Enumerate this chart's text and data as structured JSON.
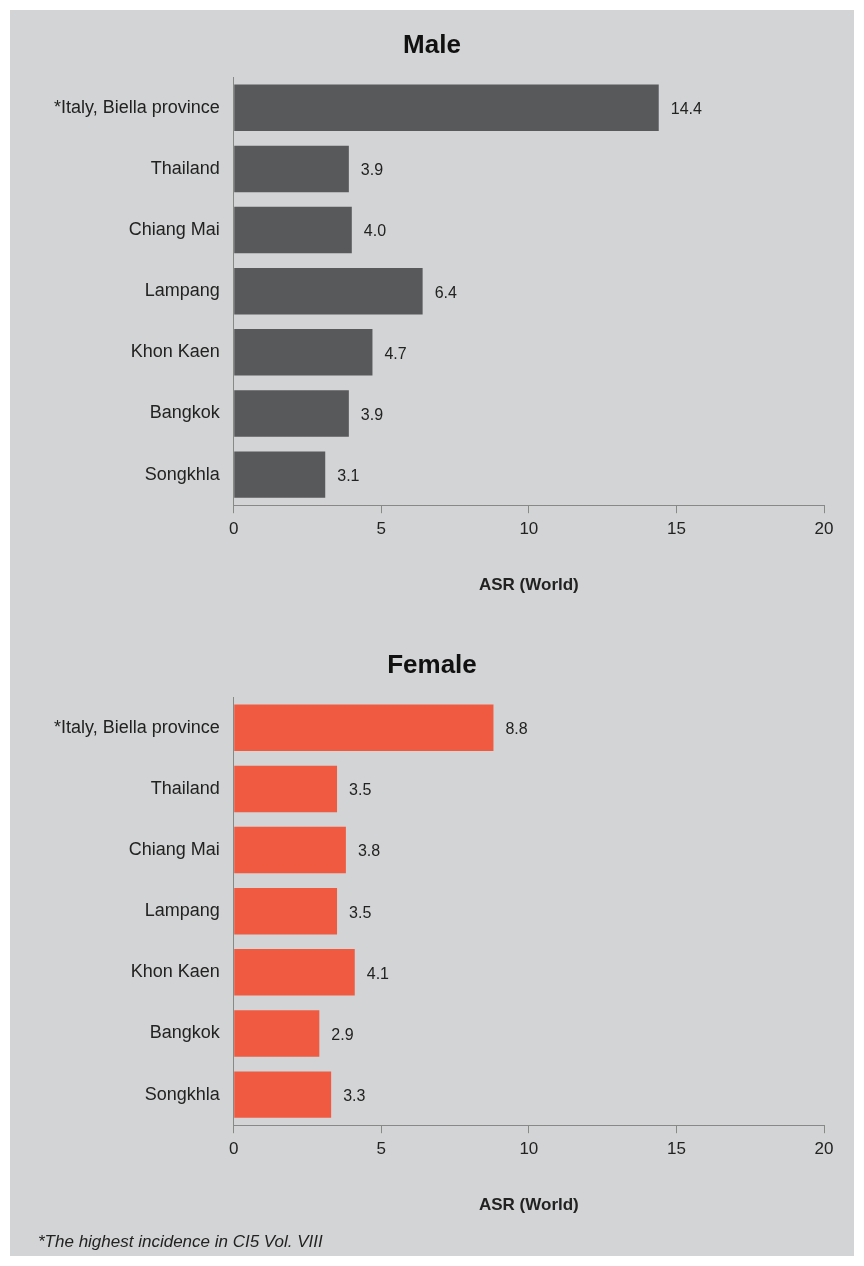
{
  "chart_data": [
    {
      "type": "bar",
      "orientation": "horizontal",
      "title": "Male",
      "xlabel": "ASR (World)",
      "categories": [
        "*Italy, Biella province",
        "Thailand",
        "Chiang Mai",
        "Lampang",
        "Khon Kaen",
        "Bangkok",
        "Songkhla"
      ],
      "values": [
        14.4,
        3.9,
        4.0,
        6.4,
        4.7,
        3.9,
        3.1
      ],
      "value_labels": [
        "14.4",
        "3.9",
        "4.0",
        "6.4",
        "4.7",
        "3.9",
        "3.1"
      ],
      "color": "#58595b",
      "xlim": [
        0,
        20
      ],
      "xticks": [
        0,
        5,
        10,
        15,
        20
      ],
      "grid": false,
      "legend": false
    },
    {
      "type": "bar",
      "orientation": "horizontal",
      "title": "Female",
      "xlabel": "ASR (World)",
      "categories": [
        "*Italy, Biella province",
        "Thailand",
        "Chiang Mai",
        "Lampang",
        "Khon Kaen",
        "Bangkok",
        "Songkhla"
      ],
      "values": [
        8.8,
        3.5,
        3.8,
        3.5,
        4.1,
        2.9,
        3.3
      ],
      "value_labels": [
        "8.8",
        "3.5",
        "3.8",
        "3.5",
        "4.1",
        "2.9",
        "3.3"
      ],
      "color": "#f05a40",
      "xlim": [
        0,
        20
      ],
      "xticks": [
        0,
        5,
        10,
        15,
        20
      ],
      "grid": false,
      "legend": false,
      "annotations": [
        "*The highest incidence in CI5 Vol. VIII"
      ]
    }
  ]
}
